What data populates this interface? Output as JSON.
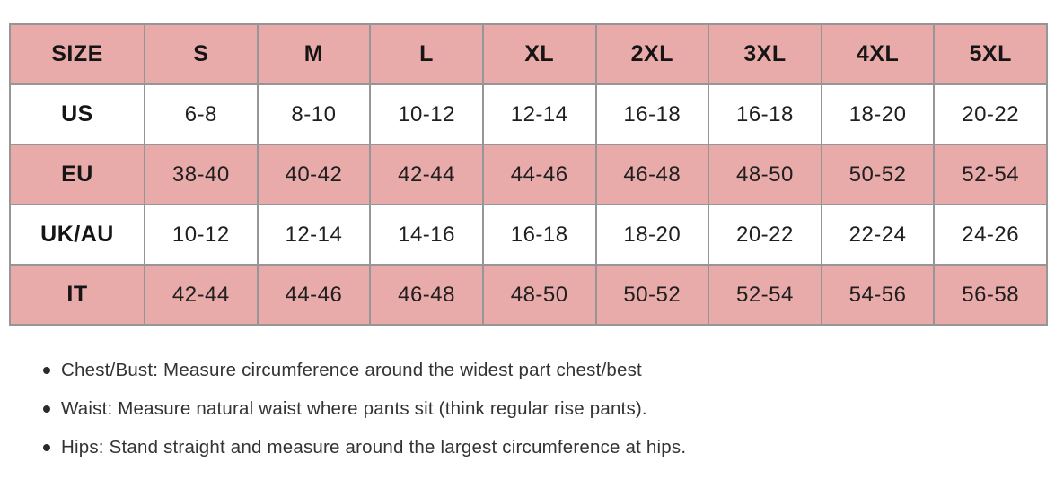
{
  "colors": {
    "row_pink": "#e9aaaa",
    "row_white": "#ffffff",
    "grid_border": "#969696",
    "cell_text": "#1f1f1f",
    "note_text": "#333333"
  },
  "size_chart": {
    "header": [
      "SIZE",
      "S",
      "M",
      "L",
      "XL",
      "2XL",
      "3XL",
      "4XL",
      "5XL"
    ],
    "rows": [
      {
        "label": "US",
        "values": [
          "6-8",
          "8-10",
          "10-12",
          "12-14",
          "16-18",
          "16-18",
          "18-20",
          "20-22"
        ]
      },
      {
        "label": "EU",
        "values": [
          "38-40",
          "40-42",
          "42-44",
          "44-46",
          "46-48",
          "48-50",
          "50-52",
          "52-54"
        ]
      },
      {
        "label": "UK/AU",
        "values": [
          "10-12",
          "12-14",
          "14-16",
          "16-18",
          "18-20",
          "20-22",
          "22-24",
          "24-26"
        ]
      },
      {
        "label": "IT",
        "values": [
          "42-44",
          "44-46",
          "46-48",
          "48-50",
          "50-52",
          "52-54",
          "54-56",
          "56-58"
        ]
      }
    ]
  },
  "notes": [
    "Chest/Bust: Measure circumference around the widest part chest/best",
    "Waist: Measure natural waist where pants sit (think regular rise pants).",
    "Hips: Stand straight and measure around the largest circumference at hips."
  ]
}
